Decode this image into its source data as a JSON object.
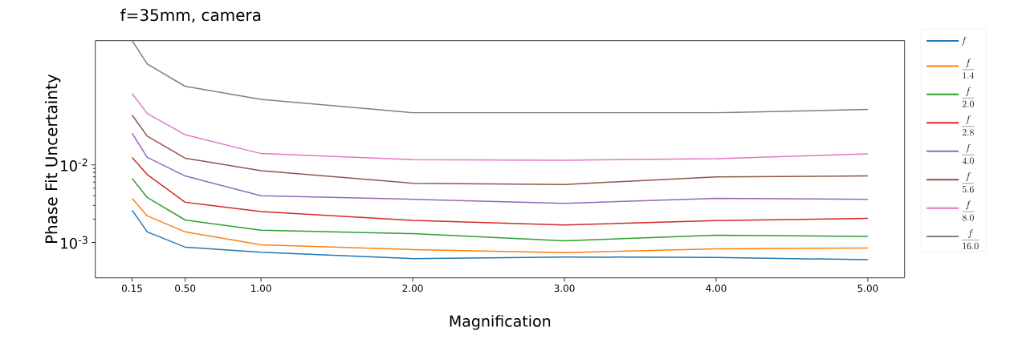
{
  "chart_data": {
    "type": "line",
    "title": "f=35mm, camera",
    "xlabel": "Magnification",
    "ylabel": "Phase Fit Uncertainty",
    "x": [
      0.15,
      0.25,
      0.5,
      1,
      2,
      3,
      4,
      5
    ],
    "series": [
      {
        "name": "f",
        "color": "#1f77b4",
        "values": [
          0.0026,
          0.00137,
          0.00087,
          0.00075,
          0.00062,
          0.00065,
          0.00064,
          0.0006
        ]
      },
      {
        "name": "\\frac{f}{1.4}",
        "color": "#ff7f0e",
        "values": [
          0.0037,
          0.0022,
          0.00137,
          0.00093,
          0.00081,
          0.00074,
          0.00083,
          0.00085
        ]
      },
      {
        "name": "\\frac{f}{2.0}",
        "color": "#2ca02c",
        "values": [
          0.0067,
          0.0038,
          0.00195,
          0.00144,
          0.0013,
          0.00105,
          0.00124,
          0.0012
        ]
      },
      {
        "name": "\\frac{f}{2.8}",
        "color": "#d62728",
        "values": [
          0.0125,
          0.0075,
          0.0033,
          0.0025,
          0.00193,
          0.00168,
          0.00191,
          0.00204
        ]
      },
      {
        "name": "\\frac{f}{4.0}",
        "color": "#9467bd",
        "values": [
          0.0255,
          0.0125,
          0.0072,
          0.004,
          0.0036,
          0.0032,
          0.0037,
          0.0036
        ]
      },
      {
        "name": "\\frac{f}{5.6}",
        "color": "#8c564b",
        "values": [
          0.044,
          0.0235,
          0.0122,
          0.0084,
          0.0058,
          0.0056,
          0.007,
          0.0072
        ]
      },
      {
        "name": "\\frac{f}{8.0}",
        "color": "#e377c2",
        "values": [
          0.083,
          0.046,
          0.0245,
          0.014,
          0.0117,
          0.0115,
          0.012,
          0.0139
        ]
      },
      {
        "name": "\\frac{f}{16.0}",
        "color": "#7f7f7f",
        "values": [
          0.4,
          0.2,
          0.103,
          0.07,
          0.047,
          0.047,
          0.047,
          0.052
        ]
      }
    ],
    "xlim": [
      -0.0925,
      5.2425
    ],
    "ylim": [
      0.00035,
      0.4
    ],
    "xticks": [
      0.15,
      {
        "value": 0.5,
        "label": "0.50"
      },
      {
        "value": 1,
        "label": "1.00"
      },
      {
        "value": 2,
        "label": "2.00"
      },
      {
        "value": 3,
        "label": "3.00"
      },
      {
        "value": 4,
        "label": "4.00"
      },
      {
        "value": 5,
        "label": "5.00"
      }
    ],
    "yticks": [
      {
        "value": 0.001,
        "label": "10$^{-3}$"
      },
      {
        "value": 0.01,
        "label": "10$^{-2}$"
      }
    ],
    "log": "y",
    "legend": "right"
  }
}
